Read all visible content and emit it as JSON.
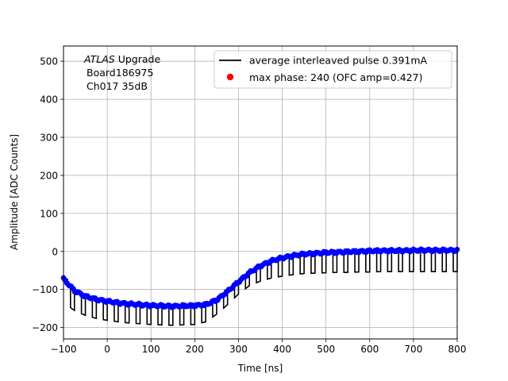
{
  "chart_data": {
    "type": "line",
    "xlabel": "Time [ns]",
    "ylabel": "Amplitude [ADC Counts]",
    "xlim": [
      -100,
      800
    ],
    "ylim": [
      -230,
      540
    ],
    "xticks": [
      -100,
      0,
      100,
      200,
      300,
      400,
      500,
      600,
      700,
      800
    ],
    "yticks": [
      -200,
      -100,
      0,
      100,
      200,
      300,
      400,
      500
    ],
    "grid": true,
    "legend_placement": "top-right",
    "annotation": {
      "line1_italic": "ATLAS",
      "line1_rest": " Upgrade",
      "line2": "Board186975",
      "line3": "Ch017 35dB"
    },
    "series": [
      {
        "name": "average interleaved pulse 0.391mA",
        "style": "line",
        "color": "#000000",
        "period_ns": 25,
        "high_x": [
          -100,
          -75,
          -50,
          -25,
          0,
          25,
          50,
          75,
          100,
          125,
          150,
          175,
          200,
          225,
          250,
          275,
          300,
          325,
          350,
          375,
          400,
          425,
          450,
          475,
          500,
          525,
          550,
          575,
          600,
          625,
          650,
          675,
          700,
          725,
          750,
          775,
          800
        ],
        "high_y": [
          -72,
          -103,
          -118,
          -126,
          -131,
          -135,
          -138,
          -140,
          -142,
          -143,
          -144,
          -143,
          -142,
          -140,
          -128,
          -105,
          -80,
          -56,
          -38,
          -25,
          -17,
          -11,
          -7,
          -5,
          -3,
          -2,
          -1,
          0,
          1,
          2,
          2,
          2,
          3,
          3,
          3,
          3,
          3
        ],
        "low_y": [
          -135,
          -155,
          -168,
          -176,
          -181,
          -185,
          -188,
          -190,
          -192,
          -193,
          -194,
          -193,
          -192,
          -185,
          -165,
          -140,
          -112,
          -90,
          -78,
          -70,
          -65,
          -61,
          -58,
          -57,
          -56,
          -55,
          -55,
          -54,
          -54,
          -53,
          -53,
          -53,
          -53,
          -53,
          -53,
          -53,
          -53
        ]
      },
      {
        "name": "max phase: 240 (OFC amp=0.427)",
        "style": "scatter",
        "color": "#ff0000",
        "points_color": "#0000ff"
      }
    ]
  }
}
